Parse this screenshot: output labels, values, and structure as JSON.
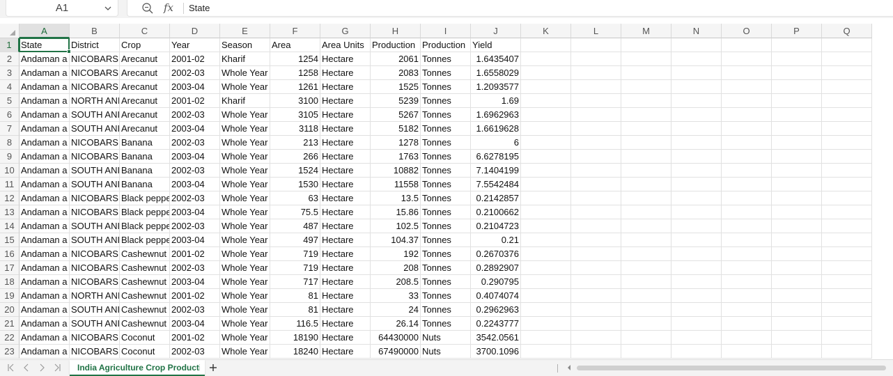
{
  "formula_bar": {
    "cell_ref": "A1",
    "zoom_icon": "zoom-magnifier-icon",
    "fx_label": "fx",
    "value": "State"
  },
  "columns": [
    "A",
    "B",
    "C",
    "D",
    "E",
    "F",
    "G",
    "H",
    "I",
    "J",
    "K",
    "L",
    "M",
    "N",
    "O",
    "P",
    "Q"
  ],
  "row_numbers": [
    "1",
    "2",
    "3",
    "4",
    "5",
    "6",
    "7",
    "8",
    "9",
    "10",
    "11",
    "12",
    "13",
    "14",
    "15",
    "16",
    "17",
    "18",
    "19",
    "20",
    "21",
    "22",
    "23"
  ],
  "table": {
    "headers": [
      "State",
      "District",
      "Crop",
      "Year",
      "Season",
      "Area",
      "Area Units",
      "Production",
      "Production",
      "Yield"
    ],
    "rows": [
      [
        "Andaman a",
        "NICOBARS",
        "Arecanut",
        "2001-02",
        "Kharif",
        "1254",
        "Hectare",
        "2061",
        "Tonnes",
        "1.6435407"
      ],
      [
        "Andaman a",
        "NICOBARS",
        "Arecanut",
        "2002-03",
        "Whole Year",
        "1258",
        "Hectare",
        "2083",
        "Tonnes",
        "1.6558029"
      ],
      [
        "Andaman a",
        "NICOBARS",
        "Arecanut",
        "2003-04",
        "Whole Year",
        "1261",
        "Hectare",
        "1525",
        "Tonnes",
        "1.2093577"
      ],
      [
        "Andaman a",
        "NORTH ANI",
        "Arecanut",
        "2001-02",
        "Kharif",
        "3100",
        "Hectare",
        "5239",
        "Tonnes",
        "1.69"
      ],
      [
        "Andaman a",
        "SOUTH ANI",
        "Arecanut",
        "2002-03",
        "Whole Year",
        "3105",
        "Hectare",
        "5267",
        "Tonnes",
        "1.6962963"
      ],
      [
        "Andaman a",
        "SOUTH ANI",
        "Arecanut",
        "2003-04",
        "Whole Year",
        "3118",
        "Hectare",
        "5182",
        "Tonnes",
        "1.6619628"
      ],
      [
        "Andaman a",
        "NICOBARS",
        "Banana",
        "2002-03",
        "Whole Year",
        "213",
        "Hectare",
        "1278",
        "Tonnes",
        "6"
      ],
      [
        "Andaman a",
        "NICOBARS",
        "Banana",
        "2003-04",
        "Whole Year",
        "266",
        "Hectare",
        "1763",
        "Tonnes",
        "6.6278195"
      ],
      [
        "Andaman a",
        "SOUTH ANI",
        "Banana",
        "2002-03",
        "Whole Year",
        "1524",
        "Hectare",
        "10882",
        "Tonnes",
        "7.1404199"
      ],
      [
        "Andaman a",
        "SOUTH ANI",
        "Banana",
        "2003-04",
        "Whole Year",
        "1530",
        "Hectare",
        "11558",
        "Tonnes",
        "7.5542484"
      ],
      [
        "Andaman a",
        "NICOBARS",
        "Black pepper",
        "2002-03",
        "Whole Year",
        "63",
        "Hectare",
        "13.5",
        "Tonnes",
        "0.2142857"
      ],
      [
        "Andaman a",
        "NICOBARS",
        "Black pepper",
        "2003-04",
        "Whole Year",
        "75.5",
        "Hectare",
        "15.86",
        "Tonnes",
        "0.2100662"
      ],
      [
        "Andaman a",
        "SOUTH ANI",
        "Black pepper",
        "2002-03",
        "Whole Year",
        "487",
        "Hectare",
        "102.5",
        "Tonnes",
        "0.2104723"
      ],
      [
        "Andaman a",
        "SOUTH ANI",
        "Black pepper",
        "2003-04",
        "Whole Year",
        "497",
        "Hectare",
        "104.37",
        "Tonnes",
        "0.21"
      ],
      [
        "Andaman a",
        "NICOBARS",
        "Cashewnut",
        "2001-02",
        "Whole Year",
        "719",
        "Hectare",
        "192",
        "Tonnes",
        "0.2670376"
      ],
      [
        "Andaman a",
        "NICOBARS",
        "Cashewnut",
        "2002-03",
        "Whole Year",
        "719",
        "Hectare",
        "208",
        "Tonnes",
        "0.2892907"
      ],
      [
        "Andaman a",
        "NICOBARS",
        "Cashewnut",
        "2003-04",
        "Whole Year",
        "717",
        "Hectare",
        "208.5",
        "Tonnes",
        "0.290795"
      ],
      [
        "Andaman a",
        "NORTH ANI",
        "Cashewnut",
        "2001-02",
        "Whole Year",
        "81",
        "Hectare",
        "33",
        "Tonnes",
        "0.4074074"
      ],
      [
        "Andaman a",
        "SOUTH ANI",
        "Cashewnut",
        "2002-03",
        "Whole Year",
        "81",
        "Hectare",
        "24",
        "Tonnes",
        "0.2962963"
      ],
      [
        "Andaman a",
        "SOUTH ANI",
        "Cashewnut",
        "2003-04",
        "Whole Year",
        "116.5",
        "Hectare",
        "26.14",
        "Tonnes",
        "0.2243777"
      ],
      [
        "Andaman a",
        "NICOBARS",
        "Coconut",
        "2001-02",
        "Whole Year",
        "18190",
        "Hectare",
        "64430000",
        "Nuts",
        "3542.0561"
      ],
      [
        "Andaman a",
        "NICOBARS",
        "Coconut",
        "2002-03",
        "Whole Year",
        "18240",
        "Hectare",
        "67490000",
        "Nuts",
        "3700.1096"
      ]
    ],
    "numeric_columns": [
      5,
      7,
      9
    ]
  },
  "active_cell": {
    "column": "A",
    "row": "1"
  },
  "sheet_tabs": {
    "active_label": "India Agriculture Crop Producti",
    "add_icon": "plus-icon",
    "nav_icons": [
      "first-sheet-icon",
      "prev-sheet-icon",
      "next-sheet-icon",
      "last-sheet-icon"
    ]
  },
  "colors": {
    "accent": "#217346",
    "grid_line": "#e1e1e1",
    "header_bg": "#f5f5f5"
  }
}
